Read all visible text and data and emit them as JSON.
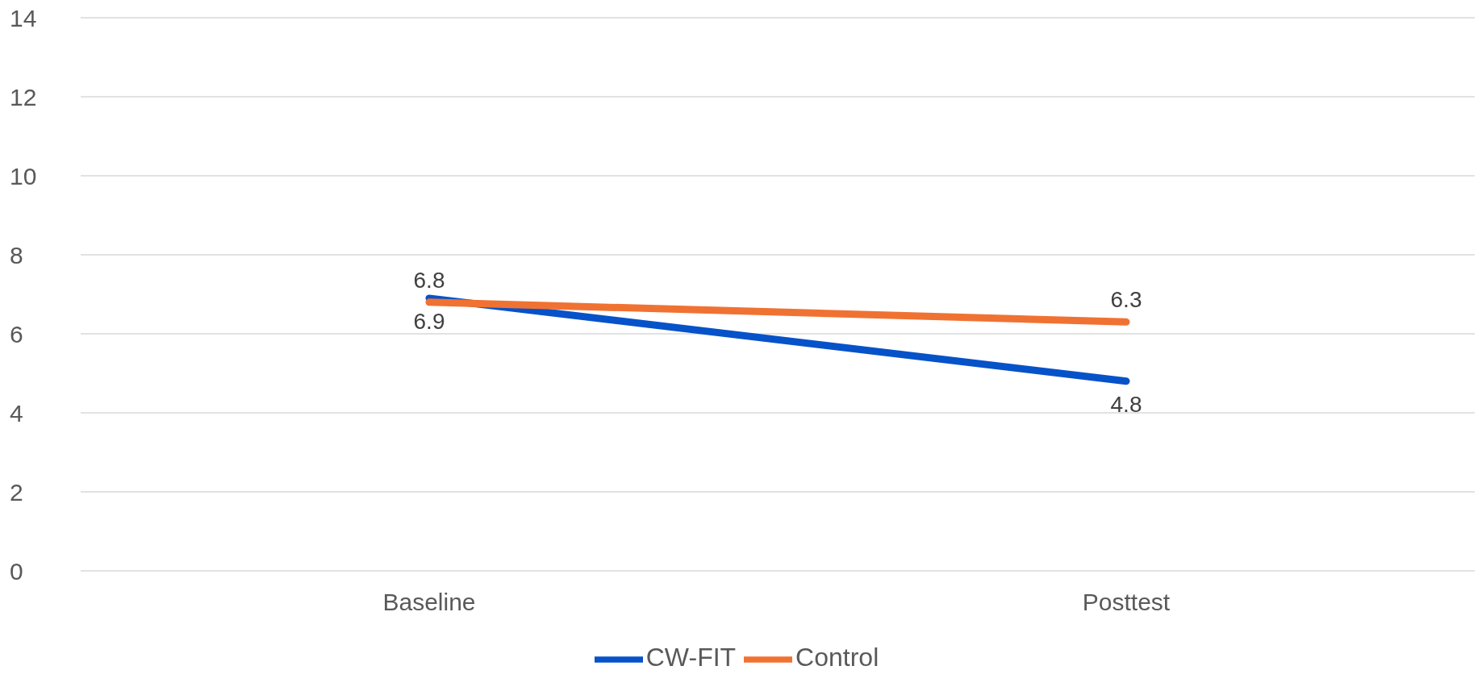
{
  "chart_data": {
    "type": "line",
    "categories": [
      "Baseline",
      "Posttest"
    ],
    "series": [
      {
        "name": "CW-FIT",
        "color": "#0652c9",
        "values": [
          6.9,
          4.8
        ]
      },
      {
        "name": "Control",
        "color": "#f07232",
        "values": [
          6.8,
          6.3
        ]
      }
    ],
    "ylim": [
      0,
      14
    ],
    "yticks": [
      0,
      2,
      4,
      6,
      8,
      10,
      12,
      14
    ],
    "grid": "y",
    "legend": "bottom",
    "data_labels": true,
    "marker": "none",
    "line_style": "solid"
  }
}
